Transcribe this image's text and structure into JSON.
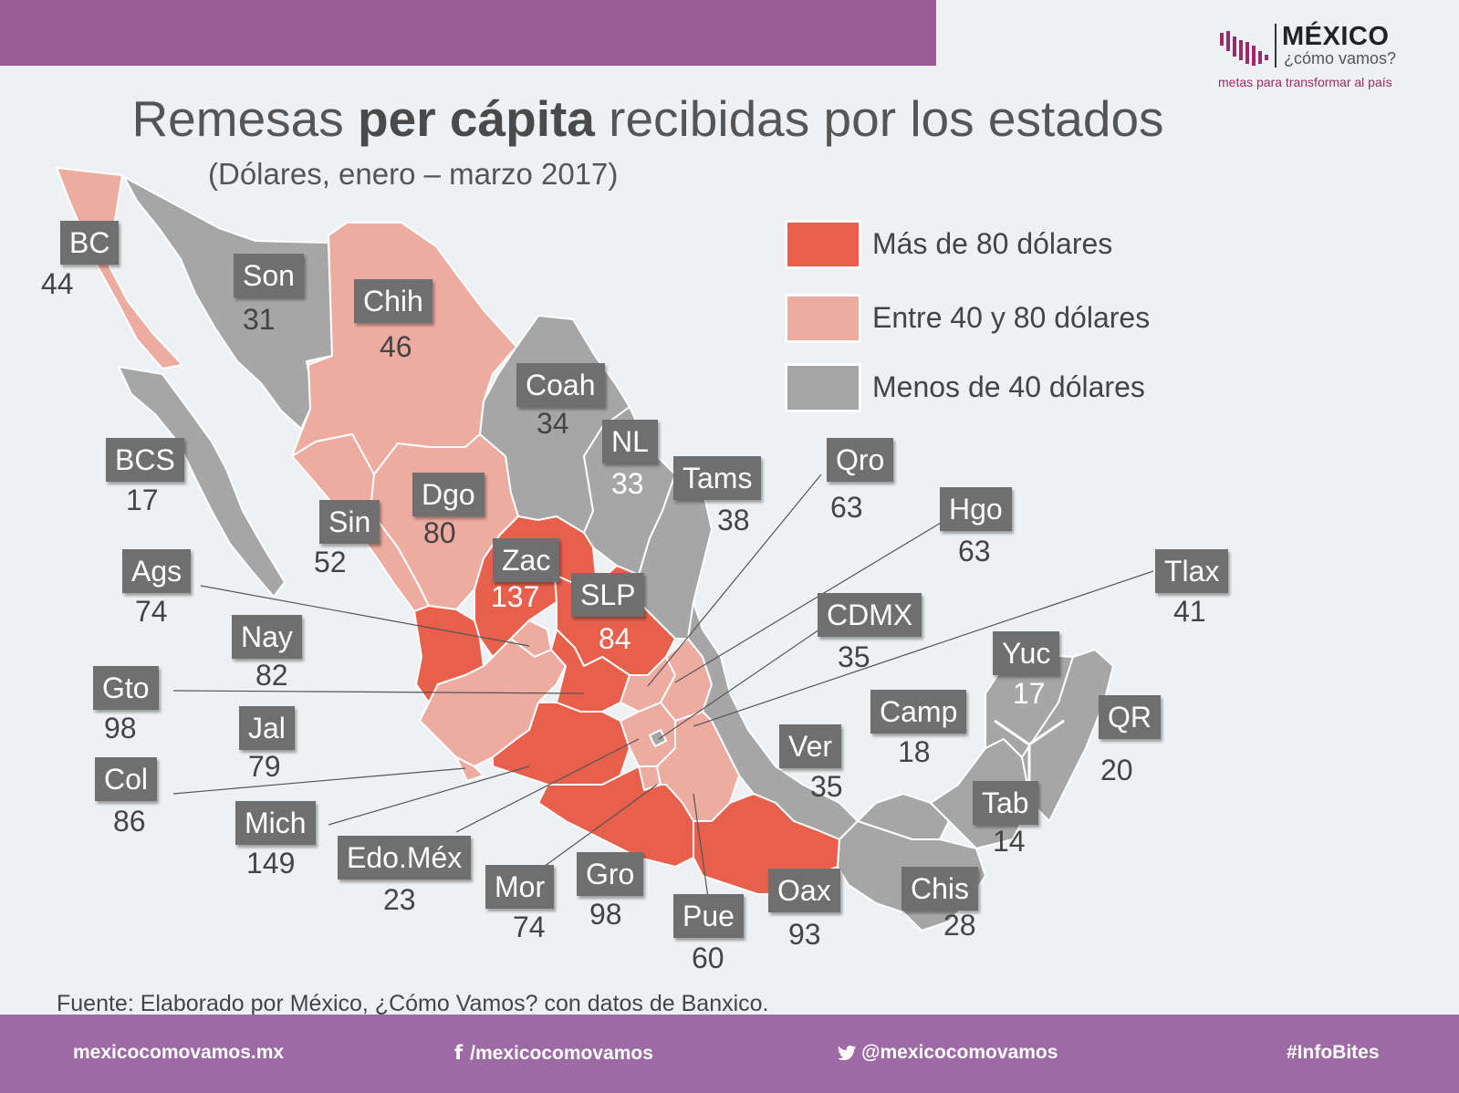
{
  "header": {
    "logo_name": "MÉXICO",
    "logo_question": "¿cómo vamos?",
    "logo_tagline": "metas para transformar al país"
  },
  "title": {
    "part1": "Remesas ",
    "bold": "per cápita",
    "part2": " recibidas por los estados"
  },
  "subtitle": "(Dólares, enero – marzo 2017)",
  "legend": [
    {
      "label": "Más de 80 dólares",
      "color": "#e8604b"
    },
    {
      "label": "Entre 40 y 80 dólares",
      "color": "#eeaca1"
    },
    {
      "label": "Menos de 40 dólares",
      "color": "#a6a6a6"
    }
  ],
  "states": [
    {
      "abbr": "BC",
      "value": "44"
    },
    {
      "abbr": "Son",
      "value": "31"
    },
    {
      "abbr": "Chih",
      "value": "46"
    },
    {
      "abbr": "Coah",
      "value": "34"
    },
    {
      "abbr": "NL",
      "value": "33"
    },
    {
      "abbr": "Tams",
      "value": "38"
    },
    {
      "abbr": "BCS",
      "value": "17"
    },
    {
      "abbr": "Sin",
      "value": "52"
    },
    {
      "abbr": "Dgo",
      "value": "80"
    },
    {
      "abbr": "Zac",
      "value": "137"
    },
    {
      "abbr": "SLP",
      "value": "84"
    },
    {
      "abbr": "Ags",
      "value": "74"
    },
    {
      "abbr": "Nay",
      "value": "82"
    },
    {
      "abbr": "Gto",
      "value": "98"
    },
    {
      "abbr": "Jal",
      "value": "79"
    },
    {
      "abbr": "Col",
      "value": "86"
    },
    {
      "abbr": "Mich",
      "value": "149"
    },
    {
      "abbr": "Edo.Méx",
      "value": "23"
    },
    {
      "abbr": "Mor",
      "value": "74"
    },
    {
      "abbr": "Gro",
      "value": "98"
    },
    {
      "abbr": "Pue",
      "value": "60"
    },
    {
      "abbr": "Oax",
      "value": "93"
    },
    {
      "abbr": "Chis",
      "value": "28"
    },
    {
      "abbr": "Tab",
      "value": "14"
    },
    {
      "abbr": "Ver",
      "value": "35"
    },
    {
      "abbr": "Camp",
      "value": "18"
    },
    {
      "abbr": "Yuc",
      "value": "17"
    },
    {
      "abbr": "QR",
      "value": "20"
    },
    {
      "abbr": "CDMX",
      "value": "35"
    },
    {
      "abbr": "Qro",
      "value": "63"
    },
    {
      "abbr": "Hgo",
      "value": "63"
    },
    {
      "abbr": "Tlax",
      "value": "41"
    }
  ],
  "source": "Fuente: Elaborado por México, ¿Cómo Vamos? con datos de Banxico.",
  "footer": {
    "website": "mexicocomovamos.mx",
    "facebook": "/mexicocomovamos",
    "twitter": "@mexicocomovamos",
    "hashtag": "#InfoBites"
  }
}
